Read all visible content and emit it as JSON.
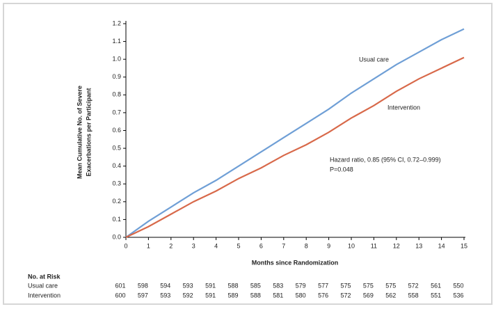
{
  "chart_data": {
    "type": "line",
    "ylabel": [
      "Mean Cumulative No. of Severe",
      "Exacerbations per Participant"
    ],
    "xlabel": "Months since Randomization",
    "x": [
      0,
      1,
      2,
      3,
      4,
      5,
      6,
      7,
      8,
      9,
      10,
      11,
      12,
      13,
      14,
      15
    ],
    "series": [
      {
        "name": "Usual care",
        "color": "#6f9fd6",
        "values": [
          0,
          0.09,
          0.17,
          0.25,
          0.32,
          0.4,
          0.48,
          0.56,
          0.64,
          0.72,
          0.81,
          0.89,
          0.97,
          1.04,
          1.11,
          1.17
        ]
      },
      {
        "name": "Intervention",
        "color": "#d8694a",
        "values": [
          0,
          0.06,
          0.13,
          0.2,
          0.26,
          0.33,
          0.39,
          0.46,
          0.52,
          0.59,
          0.67,
          0.74,
          0.82,
          0.89,
          0.95,
          1.01
        ]
      }
    ],
    "xlim": [
      0,
      15
    ],
    "xticks": [
      0,
      1,
      2,
      3,
      4,
      5,
      6,
      7,
      8,
      9,
      10,
      11,
      12,
      13,
      14,
      15
    ],
    "ylim": [
      0,
      1.2
    ],
    "yticks": [
      {
        "value": 0,
        "label": "0.0"
      },
      0.1,
      0.2,
      0.3,
      0.4,
      0.5,
      0.6,
      0.7,
      0.8,
      0.9,
      {
        "value": 1,
        "label": "1.0"
      },
      1.1,
      1.2
    ],
    "grid": false,
    "annotations": [
      "Hazard ratio, 0.85 (95% CI, 0.72–0.999)",
      "P=0.048"
    ],
    "risk_table": {
      "title": "No. at Risk",
      "rows": [
        {
          "name": "Usual care",
          "values": [
            601,
            598,
            594,
            593,
            591,
            588,
            585,
            583,
            579,
            577,
            575,
            575,
            575,
            572,
            561,
            550
          ]
        },
        {
          "name": "Intervention",
          "values": [
            600,
            597,
            593,
            592,
            591,
            589,
            588,
            581,
            580,
            576,
            572,
            569,
            562,
            558,
            551,
            536
          ]
        }
      ]
    }
  }
}
